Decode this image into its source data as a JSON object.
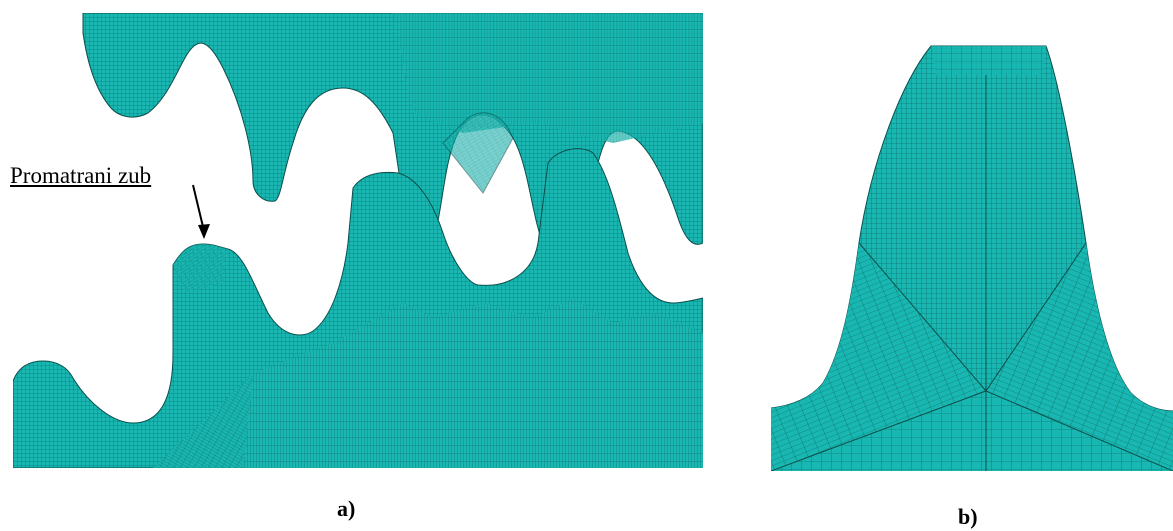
{
  "figure": {
    "panel_a_caption": "a)",
    "panel_b_caption": "b)",
    "annotation_label": "Promatrani zub"
  },
  "colors": {
    "mesh_fill": "#19b7b1",
    "mesh_line": "#0b4f4c",
    "mesh_dark": "#127f7b",
    "background": "#ffffff",
    "text": "#000000"
  }
}
